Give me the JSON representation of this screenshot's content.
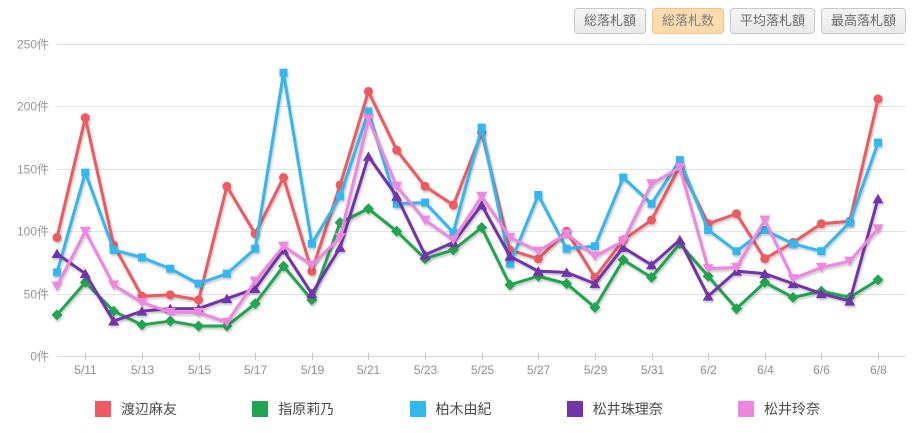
{
  "toolbar": {
    "buttons": [
      {
        "label": "総落札額",
        "active": false
      },
      {
        "label": "総落札数",
        "active": true
      },
      {
        "label": "平均落札額",
        "active": false
      },
      {
        "label": "最高落札額",
        "active": false
      }
    ]
  },
  "chart_data": {
    "type": "line",
    "title": "",
    "xlabel": "",
    "ylabel": "",
    "ylim": [
      0,
      250
    ],
    "ytick_step": 50,
    "y_suffix": "件",
    "grid": true,
    "legend_position": "bottom",
    "x_labeled_every_other_from_index": 1,
    "x": [
      "5/10",
      "5/11",
      "5/12",
      "5/13",
      "5/14",
      "5/15",
      "5/16",
      "5/17",
      "5/18",
      "5/19",
      "5/20",
      "5/21",
      "5/22",
      "5/23",
      "5/24",
      "5/25",
      "5/26",
      "5/27",
      "5/28",
      "5/29",
      "5/30",
      "5/31",
      "6/1",
      "6/2",
      "6/3",
      "6/4",
      "6/5",
      "6/6",
      "6/7",
      "6/8"
    ],
    "series": [
      {
        "name": "渡辺麻友",
        "color": "#f0595f",
        "marker": "circle",
        "values": [
          95,
          191,
          89,
          48,
          49,
          45,
          136,
          98,
          143,
          68,
          137,
          212,
          165,
          136,
          121,
          179,
          85,
          78,
          100,
          63,
          93,
          109,
          152,
          106,
          114,
          78,
          91,
          106,
          108,
          206
        ]
      },
      {
        "name": "指原莉乃",
        "color": "#1fa54e",
        "marker": "diamond",
        "values": [
          33,
          59,
          36,
          25,
          28,
          24,
          24,
          42,
          72,
          45,
          107,
          118,
          100,
          78,
          85,
          103,
          57,
          64,
          58,
          39,
          77,
          63,
          90,
          64,
          38,
          59,
          47,
          52,
          47,
          61
        ]
      },
      {
        "name": "柏木由紀",
        "color": "#33b7f0",
        "marker": "square",
        "values": [
          67,
          147,
          85,
          79,
          70,
          58,
          66,
          86,
          227,
          90,
          128,
          196,
          122,
          123,
          99,
          183,
          74,
          129,
          86,
          88,
          143,
          122,
          157,
          101,
          84,
          101,
          90,
          84,
          107,
          171
        ]
      },
      {
        "name": "松井珠理奈",
        "color": "#7433ad",
        "marker": "triangle-up",
        "values": [
          82,
          66,
          28,
          36,
          38,
          38,
          46,
          54,
          85,
          50,
          87,
          160,
          128,
          81,
          91,
          121,
          80,
          68,
          67,
          58,
          87,
          73,
          93,
          48,
          68,
          66,
          58,
          50,
          44,
          126
        ]
      },
      {
        "name": "松井玲奈",
        "color": "#ef86e2",
        "marker": "triangle-down",
        "values": [
          56,
          100,
          57,
          43,
          35,
          35,
          27,
          60,
          88,
          73,
          95,
          190,
          136,
          109,
          93,
          128,
          95,
          84,
          98,
          80,
          92,
          138,
          151,
          70,
          71,
          109,
          62,
          71,
          76,
          102
        ]
      }
    ]
  }
}
